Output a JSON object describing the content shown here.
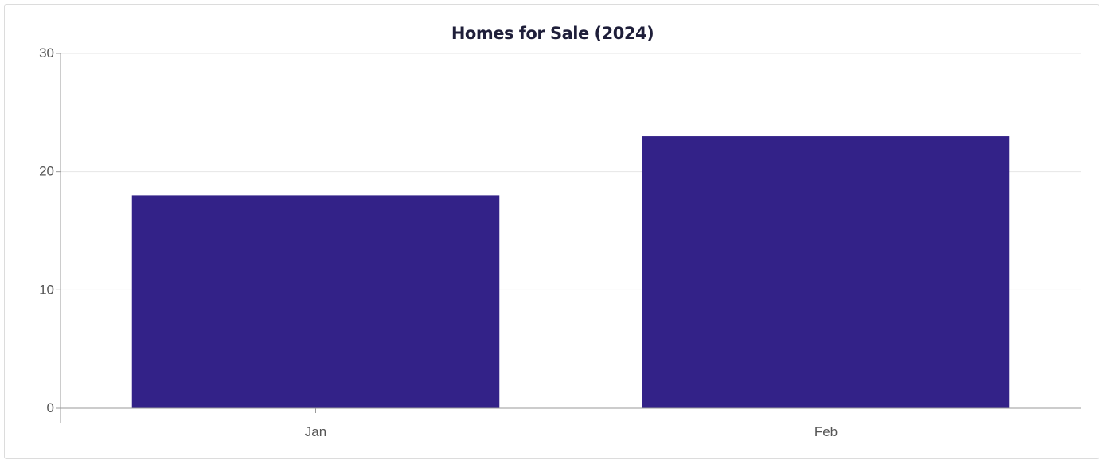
{
  "chart_data": {
    "type": "bar",
    "title": "Homes for Sale (2024)",
    "categories": [
      "Jan",
      "Feb"
    ],
    "values": [
      18,
      23
    ],
    "ylim": [
      0,
      30
    ],
    "yticks": [
      0,
      10,
      20,
      30
    ],
    "xlabel": "",
    "ylabel": "",
    "grid": true,
    "legend": "none",
    "colors": {
      "bar": "#332288",
      "grid": "#e6e6e6",
      "axis": "#9a9a9a"
    }
  }
}
